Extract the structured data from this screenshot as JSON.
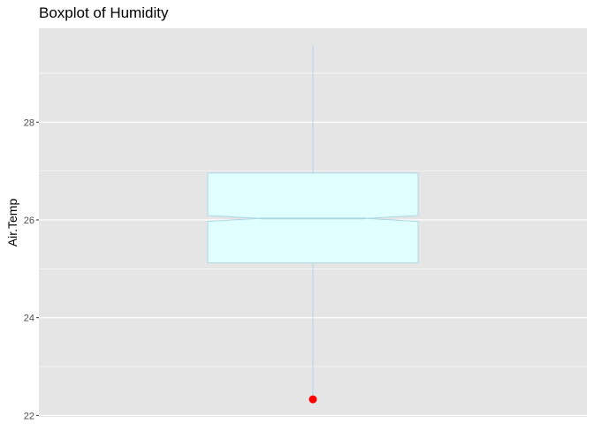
{
  "chart_data": {
    "type": "boxplot",
    "title": "Boxplot of Humidity",
    "xlabel": "",
    "ylabel": "Air.Temp",
    "ylim": [
      21.97,
      29.92
    ],
    "y_ticks": [
      22,
      24,
      26,
      28
    ],
    "grid": true,
    "notched": true,
    "box": {
      "min": 22.33,
      "q1": 25.12,
      "median": 26.03,
      "q3": 26.96,
      "whisker_low": 22.33,
      "whisker_high": 29.57,
      "notch_low": 25.97,
      "notch_high": 26.09
    },
    "outliers": [
      22.33
    ],
    "colors": {
      "panel_bg": "#e5e5e5",
      "grid": "#ffffff",
      "box_fill": "#e0ffff",
      "box_stroke": "#add8e6",
      "outlier": "#ff0000"
    }
  }
}
